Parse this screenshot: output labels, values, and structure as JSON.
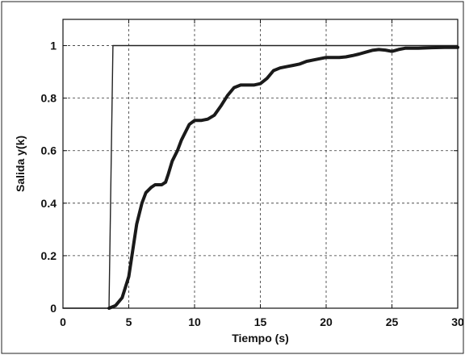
{
  "chart_data": {
    "type": "line",
    "title": "",
    "xlabel": "Tiempo (s)",
    "ylabel": "Salida y(k)",
    "xlim": [
      0,
      30
    ],
    "ylim": [
      0,
      1.1
    ],
    "grid": true,
    "x_ticks": [
      "0",
      "5",
      "10",
      "15",
      "20",
      "25",
      "30"
    ],
    "y_ticks": [
      "0",
      "0.2",
      "0.4",
      "0.6",
      "0.8",
      "1"
    ],
    "series": [
      {
        "line": "thin",
        "color": "#222222",
        "x": [
          0,
          3.5,
          3.5,
          3.8,
          3.8,
          30
        ],
        "y": [
          0,
          0,
          0.02,
          1.0,
          1.0,
          1.0
        ]
      },
      {
        "line": "thick",
        "color": "#1a1a1a",
        "x": [
          3.5,
          4,
          4.5,
          5,
          5.3,
          5.6,
          6,
          6.3,
          6.7,
          7,
          7.5,
          7.8,
          8,
          8.3,
          8.7,
          9,
          9.3,
          9.6,
          10,
          10.5,
          11,
          11.5,
          12,
          12.5,
          13,
          13.5,
          14,
          14.5,
          15,
          15.5,
          16,
          16.5,
          17,
          17.5,
          18,
          18.5,
          19,
          19.5,
          20,
          20.5,
          21,
          21.5,
          22,
          22.5,
          23,
          23.5,
          24,
          24.5,
          25,
          25.5,
          26,
          27,
          28,
          29,
          30
        ],
        "y": [
          0,
          0.01,
          0.04,
          0.12,
          0.22,
          0.32,
          0.4,
          0.44,
          0.46,
          0.47,
          0.47,
          0.48,
          0.51,
          0.56,
          0.6,
          0.64,
          0.67,
          0.7,
          0.715,
          0.715,
          0.72,
          0.735,
          0.77,
          0.81,
          0.84,
          0.85,
          0.85,
          0.85,
          0.855,
          0.875,
          0.905,
          0.915,
          0.92,
          0.925,
          0.93,
          0.94,
          0.945,
          0.95,
          0.955,
          0.955,
          0.955,
          0.957,
          0.962,
          0.968,
          0.975,
          0.982,
          0.985,
          0.983,
          0.978,
          0.985,
          0.99,
          0.99,
          0.992,
          0.993,
          0.993
        ]
      }
    ]
  }
}
